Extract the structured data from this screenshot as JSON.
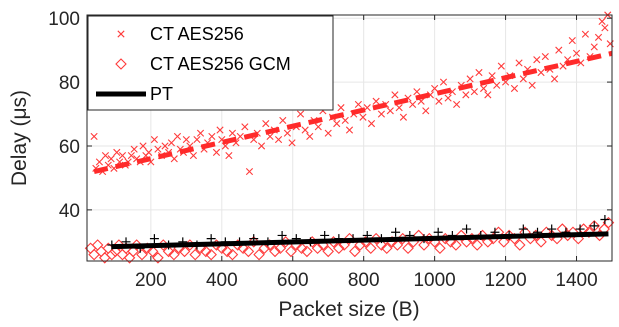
{
  "chart_data": {
    "type": "scatter",
    "xlabel": "Packet size (B)",
    "ylabel": "Delay (μs)",
    "xlim": [
      20,
      1500
    ],
    "ylim": [
      24,
      101
    ],
    "xticks": [
      200,
      400,
      600,
      800,
      1000,
      1200,
      1400
    ],
    "yticks": [
      40,
      60,
      80,
      100
    ],
    "grid": true,
    "legend_position": "top-left",
    "series": [
      {
        "name": "CT AES256",
        "marker": "x",
        "color": "#ff3b3b",
        "points_sampled": true,
        "trend": {
          "x": [
            40,
            1500
          ],
          "y": [
            52,
            89
          ]
        },
        "x": [
          40,
          45,
          55,
          64,
          72,
          80,
          88,
          96,
          104,
          112,
          120,
          128,
          136,
          145,
          153,
          160,
          170,
          178,
          186,
          194,
          200,
          210,
          220,
          230,
          240,
          250,
          258,
          266,
          275,
          283,
          292,
          300,
          310,
          320,
          330,
          340,
          350,
          360,
          372,
          385,
          395,
          400,
          410,
          420,
          430,
          440,
          452,
          465,
          478,
          490,
          500,
          512,
          524,
          536,
          548,
          560,
          572,
          585,
          598,
          610,
          622,
          635,
          648,
          660,
          672,
          685,
          700,
          712,
          724,
          736,
          748,
          760,
          772,
          785,
          798,
          810,
          822,
          835,
          850,
          862,
          875,
          888,
          900,
          912,
          925,
          938,
          950,
          962,
          975,
          988,
          1000,
          1012,
          1025,
          1038,
          1050,
          1062,
          1075,
          1088,
          1100,
          1112,
          1125,
          1138,
          1150,
          1162,
          1175,
          1188,
          1200,
          1212,
          1225,
          1238,
          1250,
          1262,
          1275,
          1288,
          1300,
          1312,
          1325,
          1338,
          1350,
          1362,
          1375,
          1388,
          1400,
          1412,
          1425,
          1438,
          1450,
          1462,
          1472,
          1480,
          1488,
          1495
        ],
        "y": [
          63,
          53,
          55,
          52,
          57,
          54,
          56,
          53,
          58,
          55,
          57,
          54,
          55,
          57,
          59,
          56,
          55,
          60,
          57,
          58,
          55,
          62,
          59,
          57,
          60,
          58,
          61,
          56,
          63,
          59,
          58,
          62,
          60,
          57,
          62,
          64,
          59,
          61,
          63,
          58,
          65,
          62,
          60,
          57,
          64,
          61,
          63,
          66,
          52,
          62,
          64,
          60,
          67,
          63,
          65,
          62,
          68,
          64,
          61,
          66,
          70,
          65,
          63,
          68,
          66,
          71,
          64,
          69,
          67,
          72,
          68,
          65,
          70,
          73,
          69,
          72,
          67,
          74,
          70,
          73,
          71,
          76,
          72,
          69,
          75,
          73,
          77,
          74,
          71,
          76,
          78,
          74,
          80,
          75,
          77,
          73,
          79,
          76,
          81,
          77,
          83,
          78,
          76,
          82,
          79,
          85,
          80,
          82,
          78,
          86,
          81,
          84,
          79,
          87,
          83,
          88,
          84,
          81,
          90,
          85,
          87,
          93,
          89,
          86,
          95,
          88,
          91,
          94,
          99,
          97,
          101,
          92
        ]
      },
      {
        "name": "CT AES256 GCM",
        "marker": "diamond",
        "color": "#ff3b3b",
        "points_sampled": true,
        "x": [
          30,
          40,
          50,
          60,
          70,
          80,
          90,
          100,
          110,
          120,
          130,
          140,
          150,
          160,
          175,
          190,
          205,
          220,
          235,
          250,
          265,
          280,
          295,
          310,
          325,
          340,
          355,
          370,
          385,
          400,
          415,
          430,
          445,
          460,
          475,
          490,
          505,
          520,
          535,
          550,
          565,
          580,
          595,
          610,
          625,
          640,
          655,
          670,
          685,
          700,
          715,
          730,
          745,
          760,
          775,
          790,
          805,
          820,
          835,
          850,
          865,
          880,
          895,
          910,
          925,
          940,
          955,
          970,
          985,
          1000,
          1015,
          1030,
          1045,
          1060,
          1075,
          1090,
          1105,
          1120,
          1135,
          1150,
          1165,
          1180,
          1195,
          1210,
          1225,
          1240,
          1255,
          1270,
          1285,
          1300,
          1315,
          1330,
          1345,
          1360,
          1375,
          1390,
          1405,
          1420,
          1435,
          1450,
          1465,
          1478,
          1490
        ],
        "y": [
          28,
          26,
          29,
          27,
          25,
          28,
          26,
          27,
          29,
          26,
          28,
          25,
          27,
          29,
          26,
          28,
          27,
          25,
          29,
          27,
          26,
          28,
          27,
          29,
          26,
          28,
          27,
          26,
          29,
          28,
          27,
          26,
          29,
          28,
          27,
          30,
          26,
          28,
          29,
          27,
          28,
          30,
          27,
          29,
          28,
          27,
          30,
          28,
          29,
          27,
          30,
          28,
          29,
          31,
          27,
          29,
          30,
          28,
          31,
          29,
          28,
          30,
          29,
          31,
          28,
          30,
          32,
          29,
          31,
          30,
          28,
          31,
          30,
          29,
          32,
          30,
          31,
          29,
          32,
          30,
          31,
          33,
          30,
          32,
          31,
          29,
          33,
          31,
          32,
          30,
          33,
          32,
          31,
          34,
          32,
          33,
          31,
          34,
          33,
          35,
          32,
          34,
          36
        ]
      },
      {
        "name": "PT",
        "marker": "+",
        "color": "#000000",
        "points_sampled": true,
        "trend": {
          "x": [
            90,
            1490
          ],
          "y": [
            28.5,
            32.5
          ]
        },
        "x": [
          90,
          130,
          170,
          210,
          250,
          290,
          330,
          370,
          410,
          450,
          490,
          530,
          570,
          610,
          650,
          690,
          730,
          770,
          810,
          850,
          890,
          930,
          970,
          1010,
          1050,
          1090,
          1130,
          1170,
          1210,
          1250,
          1290,
          1330,
          1370,
          1410,
          1450,
          1480
        ],
        "y": [
          29,
          30,
          28,
          31,
          29,
          30,
          29,
          31,
          30,
          30,
          31,
          30,
          32,
          31,
          30,
          32,
          31,
          31,
          32,
          31,
          33,
          32,
          31,
          33,
          32,
          34,
          32,
          33,
          32,
          34,
          33,
          34,
          33,
          34,
          35,
          37
        ]
      }
    ]
  }
}
